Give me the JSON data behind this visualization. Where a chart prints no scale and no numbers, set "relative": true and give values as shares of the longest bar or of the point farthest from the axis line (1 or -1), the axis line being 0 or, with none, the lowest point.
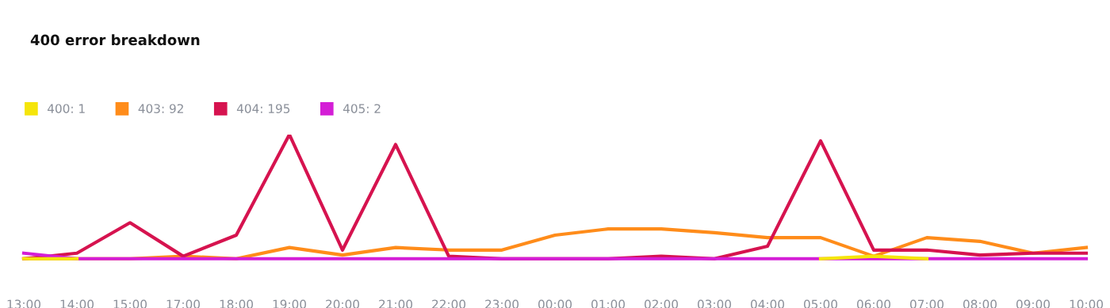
{
  "chart_data": {
    "type": "line",
    "title": "400 error breakdown",
    "relative": true,
    "grid": false,
    "legend": "top left",
    "marker": "none",
    "line_style": "solid",
    "categories": [
      "13:00",
      "14:00",
      "15:00",
      "17:00",
      "18:00",
      "19:00",
      "20:00",
      "21:00",
      "22:00",
      "23:00",
      "00:00",
      "01:00",
      "02:00",
      "03:00",
      "04:00",
      "05:00",
      "06:00",
      "07:00",
      "08:00",
      "09:00",
      "10:00"
    ],
    "series": [
      {
        "name": "400: 1",
        "color": "#f5e50a",
        "values": [
          0,
          0,
          null,
          null,
          null,
          null,
          null,
          null,
          null,
          null,
          null,
          null,
          null,
          null,
          null,
          0,
          0.02,
          0,
          null,
          null,
          null
        ]
      },
      {
        "name": "403: 92",
        "color": "#ff8c1a",
        "values": [
          0,
          0,
          0,
          0.02,
          0,
          0.09,
          0.03,
          0.09,
          0.07,
          0.07,
          0.19,
          0.24,
          0.24,
          0.21,
          0.17,
          0.17,
          0.02,
          0.17,
          0.14,
          0.045,
          0.09
        ]
      },
      {
        "name": "404: 195",
        "color": "#d6134f",
        "values": [
          0,
          0.045,
          0.29,
          0.02,
          0.19,
          1.0,
          0.07,
          0.92,
          0.02,
          0,
          0,
          0,
          0.02,
          0,
          0.1,
          0.95,
          0.07,
          0.07,
          0.03,
          0.045,
          0.045
        ]
      },
      {
        "name": "405: 2",
        "color": "#d41ed6",
        "values": [
          0.045,
          0,
          0,
          0,
          0,
          0,
          0,
          0,
          0,
          0,
          0,
          0,
          0,
          0,
          0,
          0,
          0,
          0,
          0,
          0,
          0
        ]
      }
    ]
  }
}
